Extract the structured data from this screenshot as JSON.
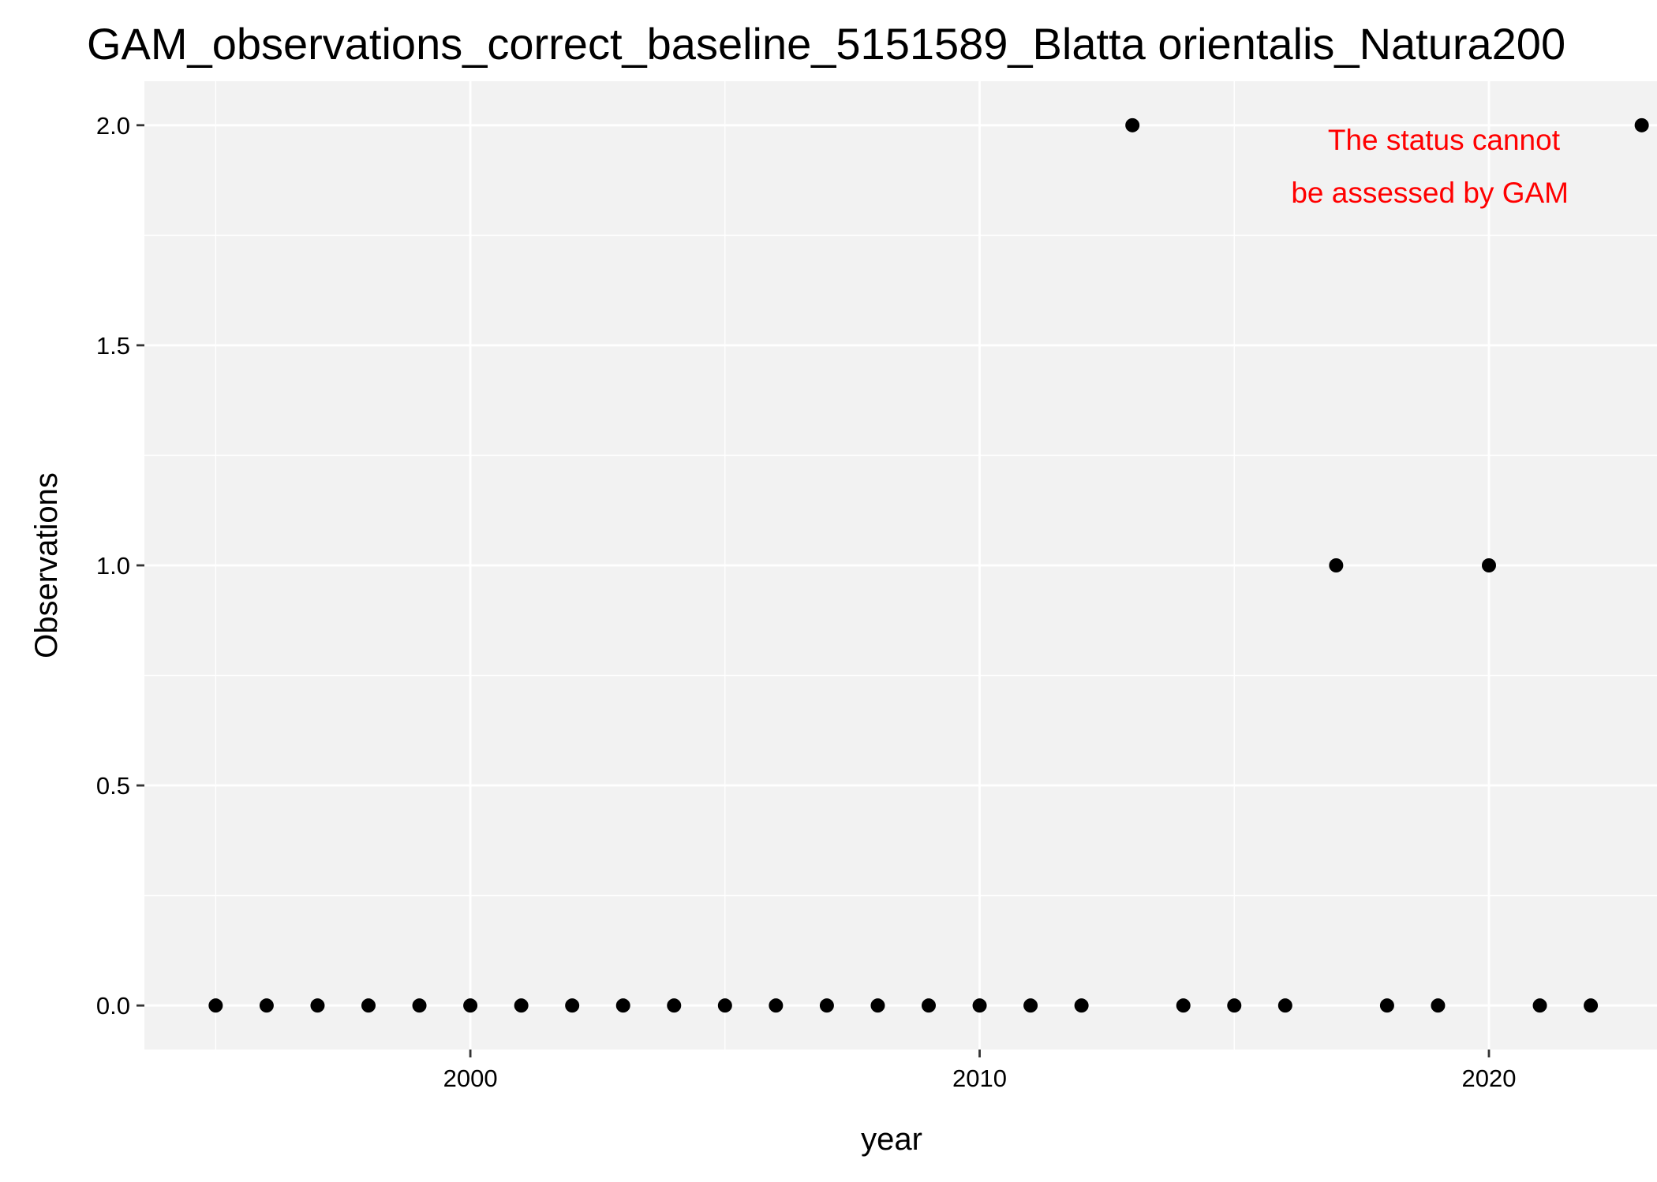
{
  "chart_data": {
    "type": "scatter",
    "title": "GAM_observations_correct_baseline_5151589_Blatta orientalis_Natura200",
    "xlabel": "year",
    "ylabel": "Observations",
    "xlim": [
      1993.6,
      2023.3
    ],
    "ylim": [
      -0.1,
      2.1
    ],
    "x_ticks": [
      2000,
      2010,
      2020
    ],
    "x_minor_ticks": [
      1995,
      2005,
      2015
    ],
    "y_ticks": [
      0.0,
      0.5,
      1.0,
      1.5,
      2.0
    ],
    "y_tick_labels": [
      "0.0",
      "0.5",
      "1.0",
      "1.5",
      "2.0"
    ],
    "y_minor_ticks": [
      0.25,
      0.75,
      1.25,
      1.75
    ],
    "grid": true,
    "legend": "none",
    "annotation": {
      "lines": [
        "The status cannot",
        "be assessed by GAM"
      ],
      "color": "#ff0000",
      "x": 2019,
      "y": 1.9
    },
    "colors": {
      "panel_background": "#f2f2f2",
      "gridline": "#ffffff",
      "point": "#000000",
      "axis_text": "#000000"
    },
    "points": [
      {
        "x": 1995,
        "y": 0
      },
      {
        "x": 1996,
        "y": 0
      },
      {
        "x": 1997,
        "y": 0
      },
      {
        "x": 1998,
        "y": 0
      },
      {
        "x": 1999,
        "y": 0
      },
      {
        "x": 2000,
        "y": 0
      },
      {
        "x": 2001,
        "y": 0
      },
      {
        "x": 2002,
        "y": 0
      },
      {
        "x": 2003,
        "y": 0
      },
      {
        "x": 2004,
        "y": 0
      },
      {
        "x": 2005,
        "y": 0
      },
      {
        "x": 2006,
        "y": 0
      },
      {
        "x": 2007,
        "y": 0
      },
      {
        "x": 2008,
        "y": 0
      },
      {
        "x": 2009,
        "y": 0
      },
      {
        "x": 2010,
        "y": 0
      },
      {
        "x": 2011,
        "y": 0
      },
      {
        "x": 2012,
        "y": 0
      },
      {
        "x": 2013,
        "y": 2
      },
      {
        "x": 2014,
        "y": 0
      },
      {
        "x": 2015,
        "y": 0
      },
      {
        "x": 2016,
        "y": 0
      },
      {
        "x": 2017,
        "y": 1
      },
      {
        "x": 2018,
        "y": 0
      },
      {
        "x": 2019,
        "y": 0
      },
      {
        "x": 2020,
        "y": 1
      },
      {
        "x": 2021,
        "y": 0
      },
      {
        "x": 2022,
        "y": 0
      },
      {
        "x": 2023,
        "y": 2
      }
    ]
  }
}
